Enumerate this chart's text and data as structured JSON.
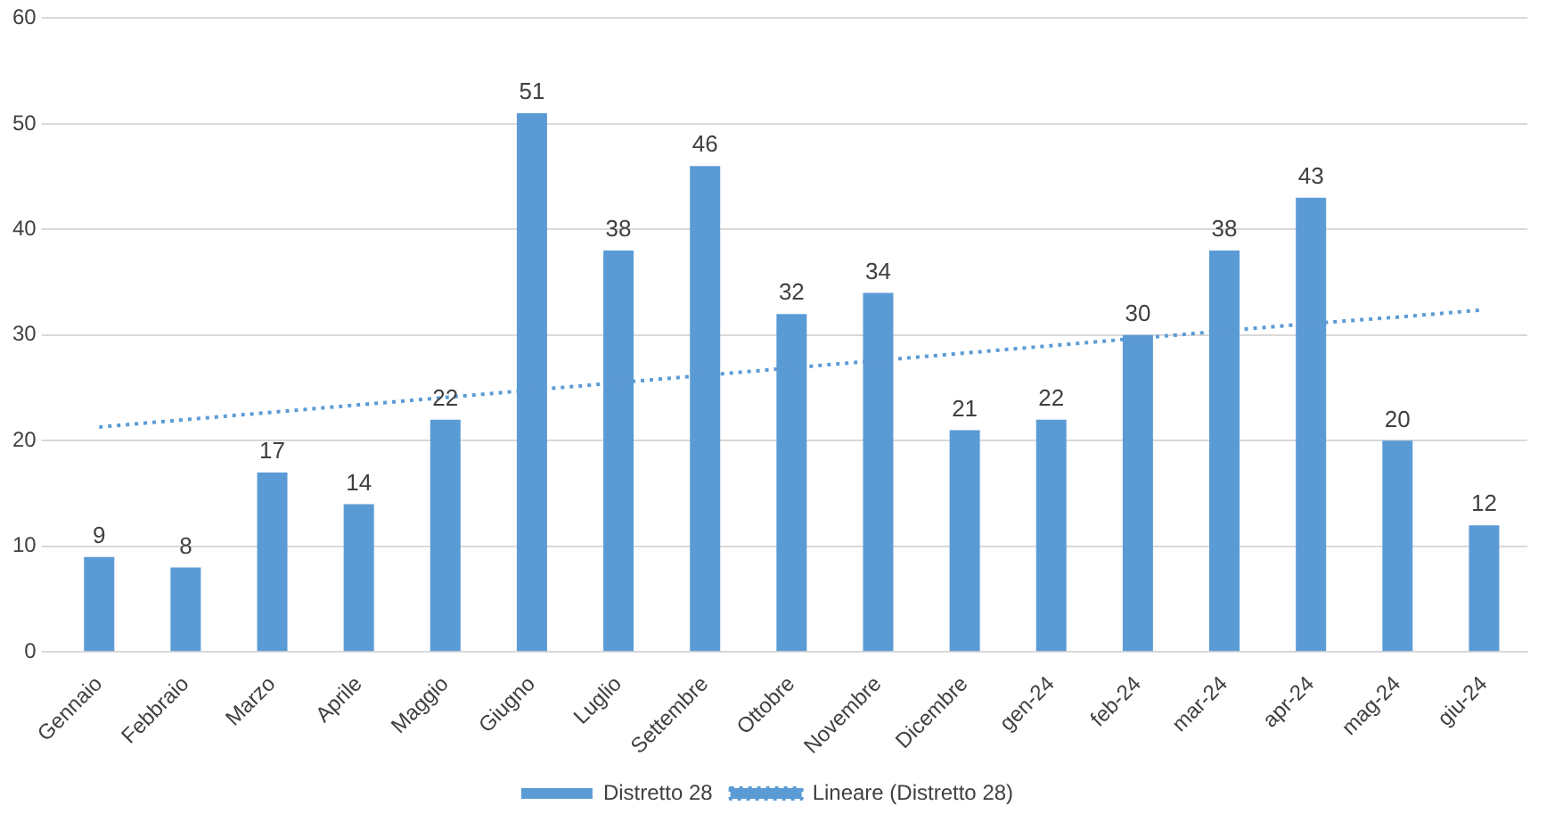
{
  "chart_data": {
    "type": "bar",
    "categories": [
      "Gennaio",
      "Febbraio",
      "Marzo",
      "Aprile",
      "Maggio",
      "Giugno",
      "Luglio",
      "Settembre",
      "Ottobre",
      "Novembre",
      "Dicembre",
      "gen-24",
      "feb-24",
      "mar-24",
      "apr-24",
      "mag-24",
      "giu-24"
    ],
    "series": [
      {
        "name": "Distretto 28",
        "color": "#5b9bd5",
        "values": [
          9,
          8,
          17,
          14,
          22,
          51,
          38,
          46,
          32,
          34,
          21,
          22,
          30,
          38,
          43,
          20,
          12
        ],
        "value_labels": [
          "9",
          "8",
          "17",
          "14",
          "22",
          "51",
          "38",
          "46",
          "32",
          "34",
          "21",
          "22",
          "30",
          "38",
          "43",
          "20",
          "12"
        ]
      },
      {
        "name": "Lineare (Distretto 28)",
        "type": "line",
        "color": "#5b9bd5",
        "line_style": "dotted",
        "marker": "none",
        "values": [
          21.3,
          22.0,
          22.7,
          23.4,
          24.1,
          24.8,
          25.5,
          26.2,
          26.9,
          27.6,
          28.3,
          29.0,
          29.7,
          30.4,
          31.1,
          31.7,
          32.4
        ]
      }
    ],
    "ylim": [
      0,
      60
    ],
    "yticks": [
      0,
      10,
      20,
      30,
      40,
      50,
      60
    ],
    "grid": "y",
    "legend": "bottom"
  }
}
